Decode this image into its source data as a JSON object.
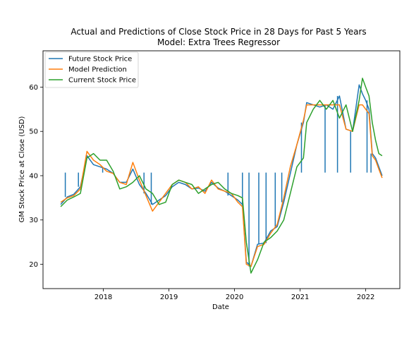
{
  "chart_data": {
    "type": "line",
    "title": "Actual and Predictions of Close Stock Price in 28 Days for Past 5 Years",
    "subtitle": "Model: Extra Trees Regressor",
    "xlabel": "Date",
    "ylabel": "GM Stock Price at Close (USD)",
    "xlim": [
      2017.08,
      2022.52
    ],
    "ylim": [
      14.5,
      68.2
    ],
    "xticks": [
      2018,
      2019,
      2020,
      2021,
      2022
    ],
    "xtick_labels": [
      "2018",
      "2019",
      "2020",
      "2021",
      "2022"
    ],
    "yticks": [
      20,
      30,
      40,
      50,
      60
    ],
    "ytick_labels": [
      "20",
      "30",
      "40",
      "50",
      "60"
    ],
    "legend_position": "upper-left",
    "grid": false,
    "series": [
      {
        "name": "Future Stock Price",
        "color": "#1f77b4",
        "x": [
          2017.35,
          2017.45,
          2017.55,
          2017.65,
          2017.75,
          2017.85,
          2017.95,
          2018.05,
          2018.15,
          2018.25,
          2018.35,
          2018.45,
          2018.55,
          2018.65,
          2018.75,
          2018.85,
          2018.95,
          2019.05,
          2019.15,
          2019.25,
          2019.35,
          2019.45,
          2019.55,
          2019.65,
          2019.75,
          2019.85,
          2019.95,
          2020.05,
          2020.12,
          2020.18,
          2020.25,
          2020.35,
          2020.45,
          2020.55,
          2020.65,
          2020.75,
          2020.85,
          2020.95,
          2021.05,
          2021.1,
          2021.2,
          2021.3,
          2021.4,
          2021.5,
          2021.6,
          2021.7,
          2021.8,
          2021.9,
          2021.95,
          2022.0,
          2022.05,
          2022.1,
          2022.15,
          2022.2,
          2022.25
        ],
        "y": [
          33.5,
          35.2,
          35.8,
          37.5,
          44.5,
          42.5,
          42.0,
          41.5,
          40.5,
          38.5,
          38.5,
          41.5,
          38.0,
          36.0,
          33.5,
          34.5,
          35.5,
          37.5,
          38.5,
          38.0,
          37.0,
          37.2,
          36.5,
          38.5,
          37.2,
          36.5,
          35.5,
          34.5,
          33.5,
          20.5,
          19.5,
          24.5,
          24.8,
          27.5,
          28.5,
          34.0,
          40.5,
          47.0,
          52.0,
          56.5,
          56.0,
          55.5,
          56.0,
          55.0,
          58.0,
          50.5,
          50.0,
          60.5,
          58.5,
          57.0,
          55.0,
          45.0,
          44.0,
          42.0,
          40.0
        ]
      },
      {
        "name": "Model Prediction",
        "color": "#ff7f0e",
        "x": [
          2017.35,
          2017.45,
          2017.55,
          2017.65,
          2017.75,
          2017.85,
          2017.95,
          2018.05,
          2018.15,
          2018.25,
          2018.35,
          2018.45,
          2018.55,
          2018.65,
          2018.75,
          2018.85,
          2018.95,
          2019.05,
          2019.15,
          2019.25,
          2019.35,
          2019.45,
          2019.55,
          2019.65,
          2019.75,
          2019.85,
          2019.95,
          2020.05,
          2020.12,
          2020.18,
          2020.25,
          2020.35,
          2020.45,
          2020.55,
          2020.65,
          2020.75,
          2020.85,
          2020.95,
          2021.05,
          2021.1,
          2021.2,
          2021.3,
          2021.4,
          2021.5,
          2021.6,
          2021.7,
          2021.8,
          2021.9,
          2021.95,
          2022.0,
          2022.05,
          2022.1,
          2022.15,
          2022.2,
          2022.25
        ],
        "y": [
          34.0,
          35.0,
          35.5,
          37.0,
          45.5,
          43.5,
          42.5,
          41.0,
          40.5,
          38.5,
          38.0,
          43.0,
          39.0,
          35.5,
          32.0,
          34.0,
          36.0,
          38.0,
          39.0,
          38.5,
          37.0,
          37.5,
          36.0,
          39.0,
          37.0,
          36.5,
          36.0,
          34.0,
          33.0,
          20.0,
          19.5,
          24.0,
          24.5,
          27.0,
          29.0,
          35.0,
          42.0,
          47.0,
          52.5,
          56.0,
          56.0,
          56.0,
          56.0,
          56.0,
          56.0,
          50.5,
          50.0,
          56.0,
          56.0,
          55.0,
          54.0,
          44.5,
          43.5,
          41.5,
          39.5
        ]
      },
      {
        "name": "Current Stock Price",
        "color": "#2ca02c",
        "x": [
          2017.35,
          2017.45,
          2017.55,
          2017.65,
          2017.75,
          2017.85,
          2017.95,
          2018.05,
          2018.15,
          2018.25,
          2018.35,
          2018.45,
          2018.55,
          2018.65,
          2018.75,
          2018.85,
          2018.95,
          2019.05,
          2019.15,
          2019.25,
          2019.35,
          2019.45,
          2019.55,
          2019.65,
          2019.75,
          2019.85,
          2019.95,
          2020.05,
          2020.12,
          2020.18,
          2020.25,
          2020.35,
          2020.45,
          2020.55,
          2020.65,
          2020.75,
          2020.85,
          2020.95,
          2021.05,
          2021.1,
          2021.2,
          2021.3,
          2021.4,
          2021.5,
          2021.6,
          2021.7,
          2021.8,
          2021.9,
          2021.95,
          2022.0,
          2022.05,
          2022.1,
          2022.15,
          2022.2,
          2022.25
        ],
        "y": [
          33.0,
          34.5,
          35.2,
          36.0,
          44.0,
          45.0,
          43.5,
          43.5,
          41.0,
          37.0,
          37.5,
          38.5,
          40.0,
          37.0,
          36.0,
          33.5,
          34.0,
          38.0,
          39.0,
          38.5,
          38.0,
          36.0,
          37.0,
          38.0,
          38.5,
          37.0,
          36.0,
          35.5,
          35.0,
          25.0,
          18.0,
          21.0,
          25.0,
          26.0,
          27.5,
          30.0,
          36.0,
          42.0,
          44.0,
          52.0,
          55.0,
          57.0,
          55.0,
          57.0,
          53.0,
          56.0,
          50.0,
          57.0,
          62.0,
          60.0,
          58.0,
          52.0,
          48.0,
          45.0,
          44.5
        ]
      }
    ],
    "spikes": {
      "note_series": "Future Stock Price",
      "level": 40.7,
      "x": [
        2017.42,
        2017.62,
        2017.99,
        2018.62,
        2018.73,
        2019.9,
        2020.12,
        2020.22,
        2020.37,
        2020.48,
        2020.62,
        2020.72,
        2021.02,
        2021.38,
        2021.57,
        2021.77,
        2022.02,
        2022.08
      ]
    }
  }
}
